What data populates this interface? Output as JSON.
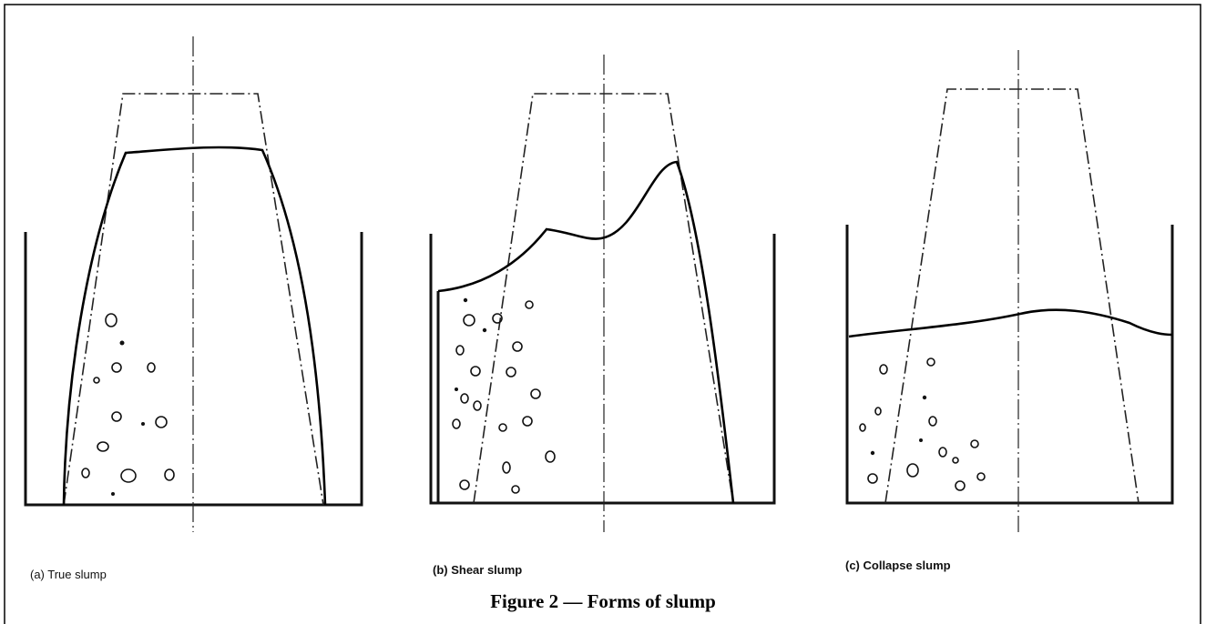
{
  "panels": [
    {
      "label": "(a) True slump"
    },
    {
      "label": "(b) Shear slump"
    },
    {
      "label": "(c) Collapse slump"
    }
  ],
  "caption": "Figure 2 — Forms of slump"
}
